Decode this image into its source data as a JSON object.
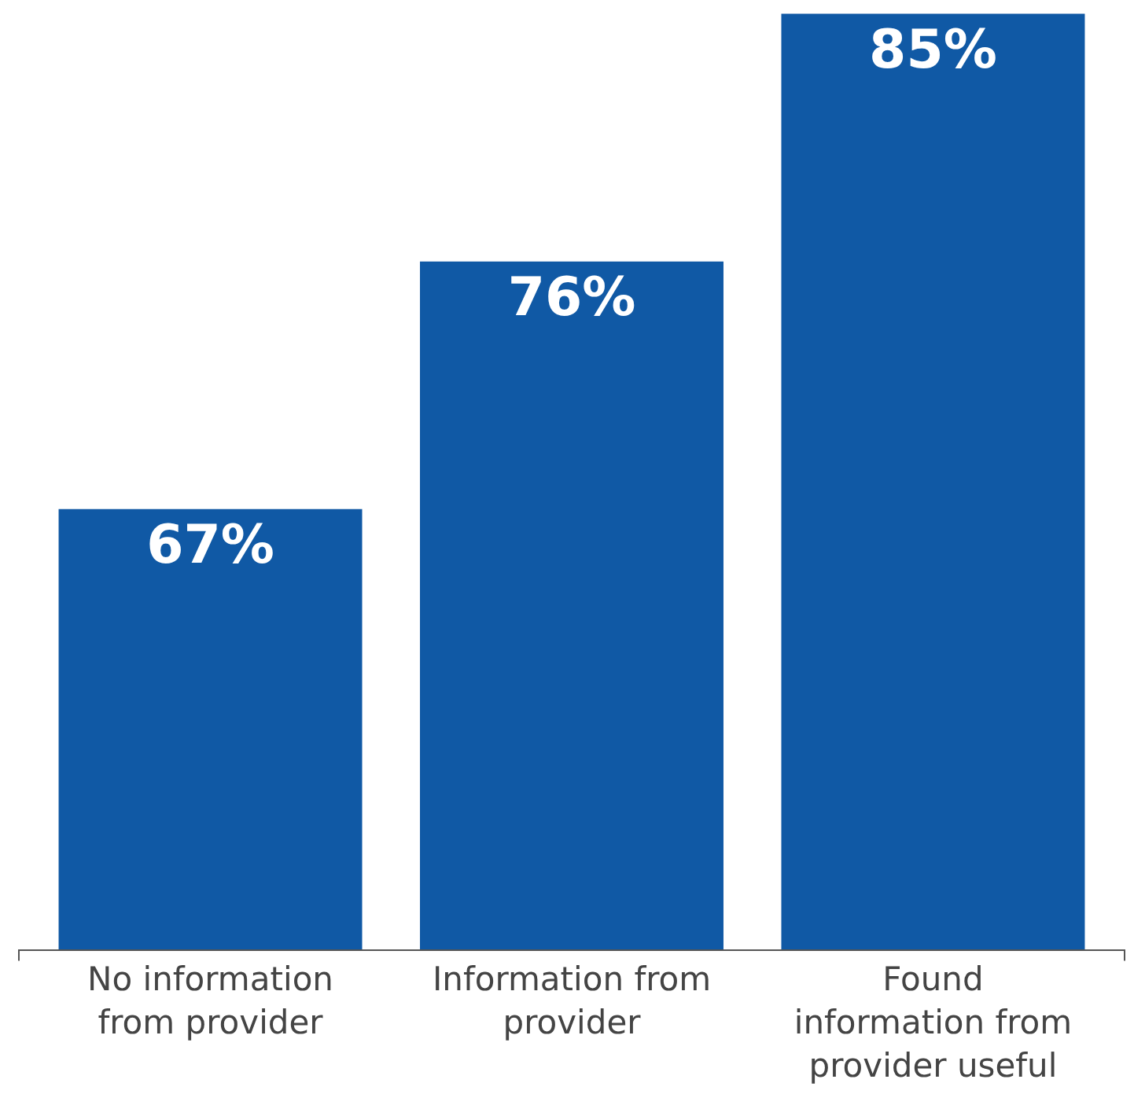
{
  "chart_data": {
    "type": "bar",
    "categories": [
      "No information from provider",
      "Information from provider",
      "Found information from provider useful"
    ],
    "values": [
      67,
      76,
      85
    ],
    "color": "#1059a5",
    "value_labels": [
      "67%",
      "76%",
      "85%"
    ],
    "ylim": [
      51,
      85.5
    ],
    "tick_labels": "x"
  }
}
